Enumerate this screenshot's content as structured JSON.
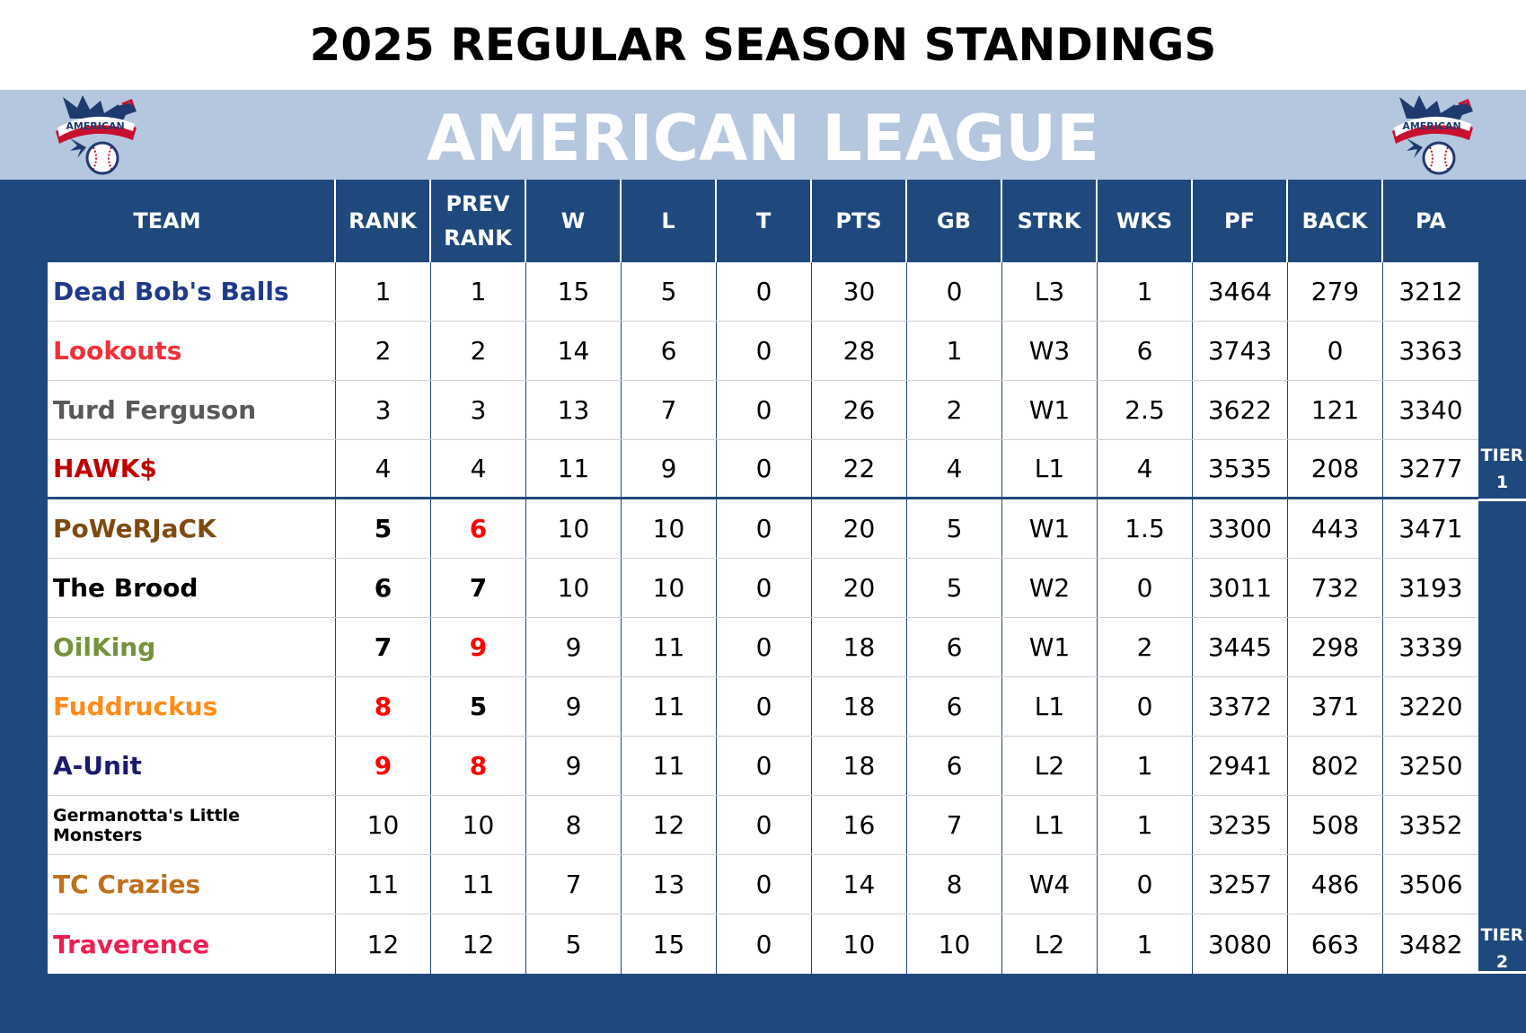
{
  "page": {
    "title": "2025 REGULAR SEASON STANDINGS",
    "league": "AMERICAN LEAGUE"
  },
  "logos": {
    "text": "AMERICAN",
    "icon": "american-league-eagle-logo",
    "colors": {
      "navy": "#1f3a6e",
      "red": "#c8102e",
      "white": "#ffffff"
    }
  },
  "columns": [
    "TEAM",
    "RANK",
    "PREV\nRANK",
    "W",
    "L",
    "T",
    "PTS",
    "GB",
    "STRK",
    "WKS",
    "PF",
    "BACK",
    "PA"
  ],
  "tiers": [
    {
      "line1": "TIER",
      "line2": "1"
    },
    {
      "line1": "TIER",
      "line2": "2"
    }
  ],
  "colors": {
    "panel": "#1f497d",
    "league_bar": "#b4c7df",
    "rank_up_down_highlight": "#ff0000"
  },
  "rows": [
    {
      "team": "Dead Bob's Balls",
      "team_color": "#1f3a8a",
      "rank": "1",
      "prev_rank": "1",
      "w": "15",
      "l": "5",
      "t": "0",
      "pts": "30",
      "gb": "0",
      "strk": "L3",
      "wks": "1",
      "pf": "3464",
      "back": "279",
      "pa": "3212",
      "rank_style": "",
      "prev_style": ""
    },
    {
      "team": "Lookouts",
      "team_color": "#f0303a",
      "rank": "2",
      "prev_rank": "2",
      "w": "14",
      "l": "6",
      "t": "0",
      "pts": "28",
      "gb": "1",
      "strk": "W3",
      "wks": "6",
      "pf": "3743",
      "back": "0",
      "pa": "3363",
      "rank_style": "",
      "prev_style": ""
    },
    {
      "team": "Turd Ferguson",
      "team_color": "#595959",
      "rank": "3",
      "prev_rank": "3",
      "w": "13",
      "l": "7",
      "t": "0",
      "pts": "26",
      "gb": "2",
      "strk": "W1",
      "wks": "2.5",
      "pf": "3622",
      "back": "121",
      "pa": "3340",
      "rank_style": "",
      "prev_style": ""
    },
    {
      "team": "HAWK$",
      "team_color": "#c00000",
      "rank": "4",
      "prev_rank": "4",
      "w": "11",
      "l": "9",
      "t": "0",
      "pts": "22",
      "gb": "4",
      "strk": "L1",
      "wks": "4",
      "pf": "3535",
      "back": "208",
      "pa": "3277",
      "rank_style": "",
      "prev_style": ""
    },
    {
      "team": "PoWeRJaCK",
      "team_color": "#7f4a10",
      "rank": "5",
      "prev_rank": "6",
      "w": "10",
      "l": "10",
      "t": "0",
      "pts": "20",
      "gb": "5",
      "strk": "W1",
      "wks": "1.5",
      "pf": "3300",
      "back": "443",
      "pa": "3471",
      "rank_style": "bold",
      "prev_style": "red"
    },
    {
      "team": "The Brood",
      "team_color": "#000000",
      "rank": "6",
      "prev_rank": "7",
      "w": "10",
      "l": "10",
      "t": "0",
      "pts": "20",
      "gb": "5",
      "strk": "W2",
      "wks": "0",
      "pf": "3011",
      "back": "732",
      "pa": "3193",
      "rank_style": "bold",
      "prev_style": "bold"
    },
    {
      "team": "OilKing",
      "team_color": "#76923c",
      "rank": "7",
      "prev_rank": "9",
      "w": "9",
      "l": "11",
      "t": "0",
      "pts": "18",
      "gb": "6",
      "strk": "W1",
      "wks": "2",
      "pf": "3445",
      "back": "298",
      "pa": "3339",
      "rank_style": "bold",
      "prev_style": "red"
    },
    {
      "team": "Fuddruckus",
      "team_color": "#ff8c1a",
      "rank": "8",
      "prev_rank": "5",
      "w": "9",
      "l": "11",
      "t": "0",
      "pts": "18",
      "gb": "6",
      "strk": "L1",
      "wks": "0",
      "pf": "3372",
      "back": "371",
      "pa": "3220",
      "rank_style": "red",
      "prev_style": "bold"
    },
    {
      "team": "A-Unit",
      "team_color": "#1a1a6e",
      "rank": "9",
      "prev_rank": "8",
      "w": "9",
      "l": "11",
      "t": "0",
      "pts": "18",
      "gb": "6",
      "strk": "L2",
      "wks": "1",
      "pf": "2941",
      "back": "802",
      "pa": "3250",
      "rank_style": "red",
      "prev_style": "red"
    },
    {
      "team": "Germanotta's Little Monsters",
      "team_color": "#000000",
      "rank": "10",
      "prev_rank": "10",
      "w": "8",
      "l": "12",
      "t": "0",
      "pts": "16",
      "gb": "7",
      "strk": "L1",
      "wks": "1",
      "pf": "3235",
      "back": "508",
      "pa": "3352",
      "rank_style": "",
      "prev_style": "",
      "small": true
    },
    {
      "team": "TC Crazies",
      "team_color": "#c0701e",
      "rank": "11",
      "prev_rank": "11",
      "w": "7",
      "l": "13",
      "t": "0",
      "pts": "14",
      "gb": "8",
      "strk": "W4",
      "wks": "0",
      "pf": "3257",
      "back": "486",
      "pa": "3506",
      "rank_style": "",
      "prev_style": ""
    },
    {
      "team": "Traverence",
      "team_color": "#f01e50",
      "rank": "12",
      "prev_rank": "12",
      "w": "5",
      "l": "15",
      "t": "0",
      "pts": "10",
      "gb": "10",
      "strk": "L2",
      "wks": "1",
      "pf": "3080",
      "back": "663",
      "pa": "3482",
      "rank_style": "",
      "prev_style": ""
    }
  ]
}
